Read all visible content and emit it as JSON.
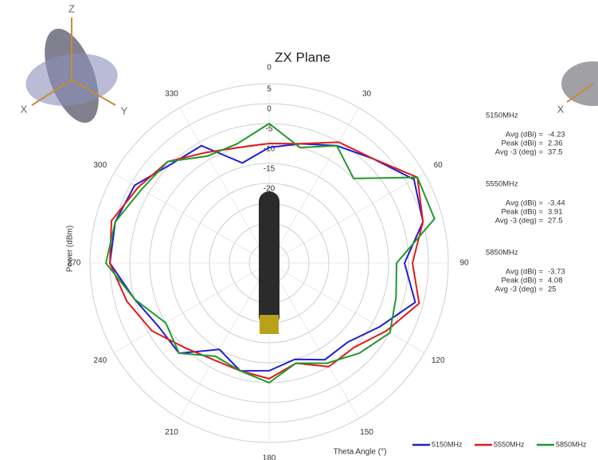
{
  "chart_data": {
    "type": "polar",
    "title": "ZX Plane",
    "x_label": "Theta  Angle (°)",
    "y_label": "Power (dBm)",
    "theta": [
      0,
      15,
      30,
      45,
      60,
      75,
      90,
      105,
      120,
      135,
      150,
      165,
      180,
      195,
      210,
      225,
      240,
      255,
      270,
      285,
      300,
      315,
      330,
      345
    ],
    "thetaticks": [
      0,
      30,
      60,
      90,
      120,
      150,
      180,
      210,
      240,
      270,
      300,
      330
    ],
    "rlim": [
      -40,
      5
    ],
    "rticks": [
      5,
      0,
      -5,
      -10,
      -15,
      -20,
      -25,
      -30,
      -35
    ],
    "series": [
      {
        "name": "5150MHz",
        "color": "#1f1fd6",
        "values": [
          -11,
          -9,
          -6,
          -3,
          2,
          0,
          -6,
          -2,
          -8,
          -12,
          -12,
          -15,
          -13,
          -12,
          -15,
          -8,
          -8,
          -5,
          0,
          0,
          -1,
          -5,
          -6,
          -14
        ]
      },
      {
        "name": "5550MHz",
        "color": "#e01b1b",
        "values": [
          -10,
          -9,
          -5,
          -3,
          3,
          0,
          -4,
          -1,
          -6,
          -10,
          -10,
          -14,
          -11,
          -12,
          -12,
          -10,
          -6,
          -3,
          0,
          1,
          -2,
          -4,
          -8,
          -10
        ]
      },
      {
        "name": "5850MHz",
        "color": "#1f9a2a",
        "values": [
          -5,
          -10,
          -6,
          -10,
          3,
          3,
          -8,
          -7,
          -5,
          -8,
          -11,
          -14,
          -10,
          -12,
          -13,
          -8,
          -10,
          -5,
          1,
          0,
          -3,
          -4,
          -9,
          -9
        ]
      }
    ],
    "legend": "bottom-right",
    "stats": [
      {
        "name": "5150MHz",
        "rows": [
          {
            "label": "Avg (dBi) =",
            "value": "-4.23"
          },
          {
            "label": "Peak (dBi) =",
            "value": "2.36"
          },
          {
            "label": "Avg -3 (deg) =",
            "value": "37.5"
          }
        ]
      },
      {
        "name": "5550MHz",
        "rows": [
          {
            "label": "Avg (dBi) =",
            "value": "-3.44"
          },
          {
            "label": "Peak (dBi) =",
            "value": "3.91"
          },
          {
            "label": "Avg -3 (deg) =",
            "value": "27.5"
          }
        ]
      },
      {
        "name": "5850MHz",
        "rows": [
          {
            "label": "Avg (dBi) =",
            "value": "-3.73"
          },
          {
            "label": "Peak (dBi) =",
            "value": "4.08"
          },
          {
            "label": "Avg -3 (deg) =",
            "value": "25"
          }
        ]
      }
    ],
    "icon_axes": [
      "Z",
      "X",
      "Y",
      "X"
    ]
  }
}
